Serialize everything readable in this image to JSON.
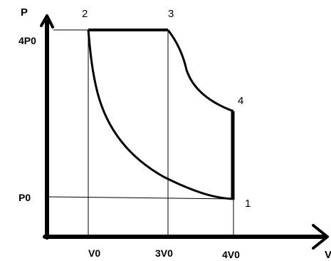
{
  "axes": {
    "y_label": "P",
    "x_label": "V"
  },
  "y_ticks": {
    "high": "4P0",
    "low": "P0"
  },
  "x_ticks": {
    "first": "V0",
    "second": "3V0",
    "third": "4V0"
  },
  "points": {
    "p1": "1",
    "p2": "2",
    "p3": "3",
    "p4": "4"
  },
  "colors": {
    "ink": "#000000",
    "guide": "#000000",
    "background": "#ffffff"
  }
}
